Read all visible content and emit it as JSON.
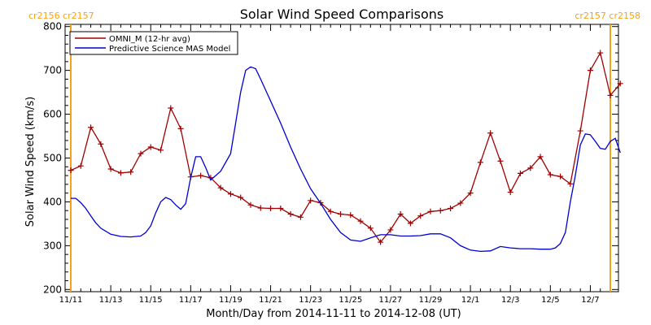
{
  "chart_data": {
    "type": "line",
    "title": "Solar Wind Speed Comparisons",
    "xlabel": "Month/Day from 2014-11-11 to 2014-12-08 (UT)",
    "ylabel": "Solar Wind Speed (km/s)",
    "ylim": [
      195,
      805
    ],
    "xlim": [
      "2014-11-11",
      "2014-12-08"
    ],
    "x_ticks": [
      "11/11",
      "11/13",
      "11/15",
      "11/17",
      "11/19",
      "11/21",
      "11/23",
      "11/25",
      "11/27",
      "11/29",
      "12/1",
      "12/3",
      "12/5",
      "12/7"
    ],
    "y_ticks": [
      200,
      300,
      400,
      500,
      600,
      700,
      800
    ],
    "grid": false,
    "legend": "top-left",
    "carrington": {
      "left": "cr2156 cr2157",
      "right": "cr2157 cr2158"
    },
    "series": [
      {
        "name": "OMNI_M (12-hr avg)",
        "color": "#a00000",
        "marker": "+",
        "x": [
          "2014-11-11 00:00",
          "2014-11-11 12:00",
          "2014-11-12 00:00",
          "2014-11-12 12:00",
          "2014-11-13 00:00",
          "2014-11-13 12:00",
          "2014-11-14 00:00",
          "2014-11-14 12:00",
          "2014-11-15 00:00",
          "2014-11-15 12:00",
          "2014-11-16 00:00",
          "2014-11-16 12:00",
          "2014-11-17 00:00",
          "2014-11-17 12:00",
          "2014-11-18 00:00",
          "2014-11-18 12:00",
          "2014-11-19 00:00",
          "2014-11-19 12:00",
          "2014-11-20 00:00",
          "2014-11-20 12:00",
          "2014-11-21 00:00",
          "2014-11-21 12:00",
          "2014-11-22 00:00",
          "2014-11-22 12:00",
          "2014-11-23 00:00",
          "2014-11-23 12:00",
          "2014-11-24 00:00",
          "2014-11-24 12:00",
          "2014-11-25 00:00",
          "2014-11-25 12:00",
          "2014-11-26 00:00",
          "2014-11-26 12:00",
          "2014-11-27 00:00",
          "2014-11-27 12:00",
          "2014-11-28 00:00",
          "2014-11-28 12:00",
          "2014-11-29 00:00",
          "2014-11-29 12:00",
          "2014-11-30 00:00",
          "2014-11-30 12:00",
          "2014-12-01 00:00",
          "2014-12-01 12:00",
          "2014-12-02 00:00",
          "2014-12-02 12:00",
          "2014-12-03 00:00",
          "2014-12-03 12:00",
          "2014-12-04 00:00",
          "2014-12-04 12:00",
          "2014-12-05 00:00",
          "2014-12-05 12:00",
          "2014-12-06 00:00",
          "2014-12-06 12:00",
          "2014-12-07 00:00",
          "2014-12-07 12:00",
          "2014-12-08 00:00",
          "2014-12-08 12:00"
        ],
        "values": [
          472,
          482,
          570,
          532,
          475,
          466,
          468,
          510,
          525,
          518,
          614,
          567,
          457,
          460,
          455,
          432,
          418,
          410,
          393,
          386,
          385,
          385,
          372,
          365,
          403,
          398,
          378,
          372,
          370,
          356,
          340,
          308,
          336,
          372,
          351,
          368,
          378,
          380,
          385,
          397,
          420,
          490,
          557,
          493,
          422,
          465,
          477,
          503,
          462,
          458,
          441,
          562,
          700,
          740,
          643,
          670
        ]
      },
      {
        "name": "Predictive Science MAS Model",
        "color": "#0000d0",
        "marker": "",
        "x": [
          "2014-11-11 00:00",
          "2014-11-11 06:00",
          "2014-11-11 12:00",
          "2014-11-11 18:00",
          "2014-11-12 00:00",
          "2014-11-12 06:00",
          "2014-11-12 12:00",
          "2014-11-13 00:00",
          "2014-11-13 12:00",
          "2014-11-14 00:00",
          "2014-11-14 12:00",
          "2014-11-14 18:00",
          "2014-11-15 00:00",
          "2014-11-15 06:00",
          "2014-11-15 12:00",
          "2014-11-15 18:00",
          "2014-11-16 00:00",
          "2014-11-16 06:00",
          "2014-11-16 12:00",
          "2014-11-16 18:00",
          "2014-11-17 00:00",
          "2014-11-17 06:00",
          "2014-11-17 12:00",
          "2014-11-17 18:00",
          "2014-11-18 00:00",
          "2014-11-18 12:00",
          "2014-11-19 00:00",
          "2014-11-19 06:00",
          "2014-11-19 12:00",
          "2014-11-19 18:00",
          "2014-11-20 00:00",
          "2014-11-20 06:00",
          "2014-11-20 12:00",
          "2014-11-21 00:00",
          "2014-11-21 12:00",
          "2014-11-22 00:00",
          "2014-11-22 12:00",
          "2014-11-23 00:00",
          "2014-11-23 12:00",
          "2014-11-24 00:00",
          "2014-11-24 12:00",
          "2014-11-25 00:00",
          "2014-11-25 12:00",
          "2014-11-26 00:00",
          "2014-11-26 12:00",
          "2014-11-27 00:00",
          "2014-11-27 12:00",
          "2014-11-28 00:00",
          "2014-11-28 12:00",
          "2014-11-29 00:00",
          "2014-11-29 12:00",
          "2014-11-30 00:00",
          "2014-11-30 12:00",
          "2014-12-01 00:00",
          "2014-12-01 12:00",
          "2014-12-02 00:00",
          "2014-12-02 12:00",
          "2014-12-03 00:00",
          "2014-12-03 12:00",
          "2014-12-04 00:00",
          "2014-12-04 12:00",
          "2014-12-05 00:00",
          "2014-12-05 06:00",
          "2014-12-05 12:00",
          "2014-12-05 18:00",
          "2014-12-06 00:00",
          "2014-12-06 06:00",
          "2014-12-06 12:00",
          "2014-12-06 18:00",
          "2014-12-07 00:00",
          "2014-12-07 06:00",
          "2014-12-07 12:00",
          "2014-12-07 18:00",
          "2014-12-08 00:00",
          "2014-12-08 06:00",
          "2014-12-08 12:00"
        ],
        "values": [
          408,
          408,
          398,
          385,
          368,
          352,
          340,
          326,
          321,
          320,
          322,
          330,
          345,
          375,
          400,
          410,
          405,
          393,
          383,
          396,
          455,
          503,
          503,
          478,
          450,
          470,
          510,
          580,
          650,
          700,
          708,
          704,
          680,
          630,
          580,
          525,
          475,
          430,
          397,
          360,
          330,
          313,
          310,
          318,
          325,
          325,
          322,
          322,
          323,
          327,
          327,
          318,
          300,
          290,
          287,
          288,
          298,
          295,
          293,
          293,
          292,
          292,
          295,
          305,
          330,
          400,
          460,
          530,
          555,
          553,
          538,
          522,
          520,
          538,
          545,
          512
        ]
      }
    ]
  }
}
